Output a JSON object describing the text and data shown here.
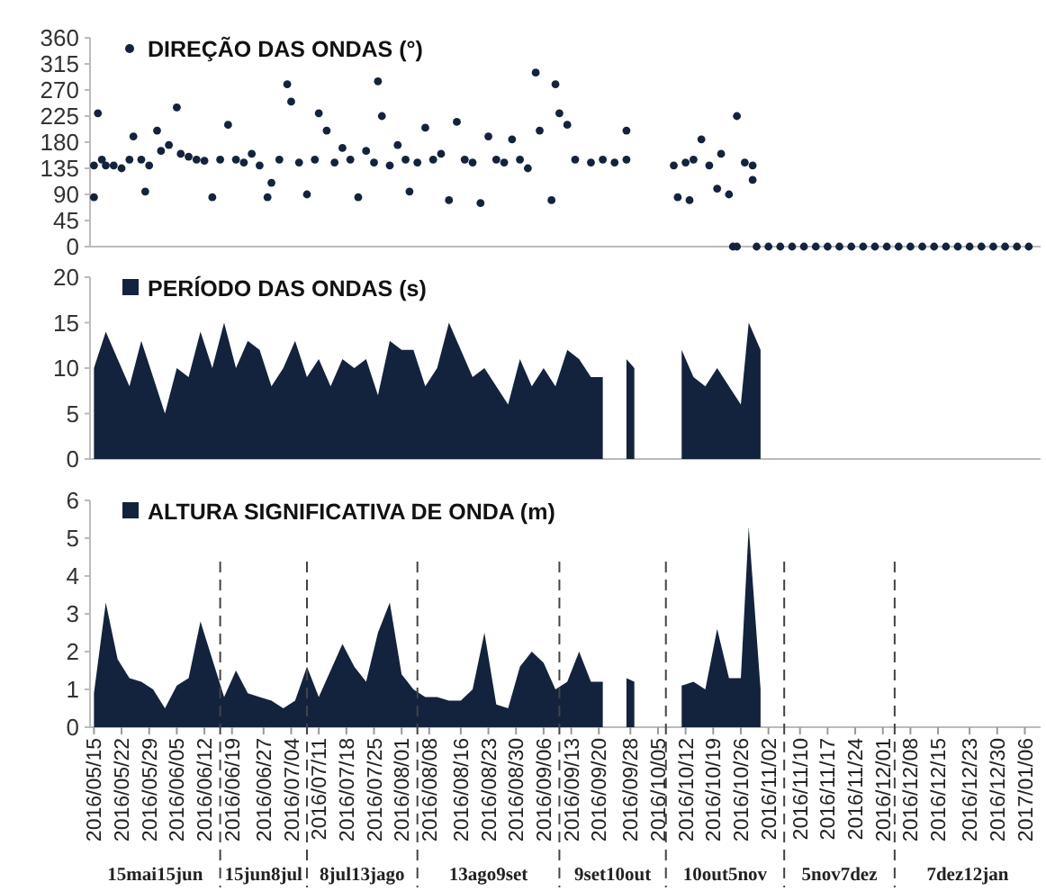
{
  "chart_data": [
    {
      "type": "scatter",
      "tick_labels": "y",
      "legend": "top left",
      "marker": "circle",
      "xlim": [
        "2016-05-14",
        "2017-01-10"
      ],
      "ylim": [
        0,
        360
      ],
      "yticks": [
        0,
        45,
        90,
        135,
        180,
        225,
        270,
        315,
        360
      ],
      "series": [
        {
          "name": "DIREÇÃO DAS ONDAS (°)",
          "color": "#13233d",
          "x": [
            "2016-05-15",
            "2016-05-15",
            "2016-05-16",
            "2016-05-17",
            "2016-05-18",
            "2016-05-20",
            "2016-05-22",
            "2016-05-24",
            "2016-05-25",
            "2016-05-27",
            "2016-05-28",
            "2016-05-29",
            "2016-05-31",
            "2016-06-01",
            "2016-06-03",
            "2016-06-05",
            "2016-06-06",
            "2016-06-08",
            "2016-06-10",
            "2016-06-12",
            "2016-06-14",
            "2016-06-16",
            "2016-06-18",
            "2016-06-20",
            "2016-06-22",
            "2016-06-24",
            "2016-06-26",
            "2016-06-28",
            "2016-06-29",
            "2016-07-01",
            "2016-07-03",
            "2016-07-04",
            "2016-07-06",
            "2016-07-08",
            "2016-07-10",
            "2016-07-11",
            "2016-07-13",
            "2016-07-15",
            "2016-07-17",
            "2016-07-19",
            "2016-07-21",
            "2016-07-23",
            "2016-07-25",
            "2016-07-26",
            "2016-07-27",
            "2016-07-29",
            "2016-07-31",
            "2016-08-02",
            "2016-08-03",
            "2016-08-05",
            "2016-08-07",
            "2016-08-09",
            "2016-08-11",
            "2016-08-13",
            "2016-08-15",
            "2016-08-17",
            "2016-08-19",
            "2016-08-21",
            "2016-08-23",
            "2016-08-25",
            "2016-08-27",
            "2016-08-29",
            "2016-08-31",
            "2016-09-02",
            "2016-09-04",
            "2016-09-05",
            "2016-09-08",
            "2016-09-09",
            "2016-09-10",
            "2016-09-12",
            "2016-09-14",
            "2016-09-18",
            "2016-09-21",
            "2016-09-24",
            "2016-09-27",
            "2016-09-27",
            "2016-10-09",
            "2016-10-10",
            "2016-10-12",
            "2016-10-13",
            "2016-10-14",
            "2016-10-16",
            "2016-10-18",
            "2016-10-20",
            "2016-10-21",
            "2016-10-23",
            "2016-10-25",
            "2016-10-27",
            "2016-10-29",
            "2016-10-29",
            "2016-10-24",
            "2016-10-25",
            "2016-10-30",
            "2016-11-02",
            "2016-11-05",
            "2016-11-08",
            "2016-11-11",
            "2016-11-14",
            "2016-11-17",
            "2016-11-20",
            "2016-11-23",
            "2016-11-26",
            "2016-11-29",
            "2016-12-02",
            "2016-12-05",
            "2016-12-08",
            "2016-12-11",
            "2016-12-14",
            "2016-12-17",
            "2016-12-20",
            "2016-12-23",
            "2016-12-26",
            "2016-12-29",
            "2017-01-01",
            "2017-01-04",
            "2017-01-07"
          ],
          "values": [
            85,
            140,
            230,
            150,
            140,
            140,
            135,
            150,
            190,
            150,
            95,
            140,
            200,
            165,
            175,
            240,
            160,
            155,
            150,
            148,
            85,
            150,
            210,
            150,
            145,
            160,
            140,
            85,
            110,
            150,
            280,
            250,
            145,
            90,
            150,
            230,
            200,
            145,
            170,
            150,
            85,
            165,
            145,
            285,
            225,
            140,
            175,
            150,
            95,
            145,
            205,
            150,
            160,
            80,
            215,
            150,
            145,
            75,
            190,
            150,
            145,
            185,
            150,
            135,
            300,
            200,
            80,
            280,
            230,
            210,
            150,
            145,
            150,
            145,
            150,
            200,
            140,
            85,
            145,
            80,
            150,
            185,
            140,
            100,
            160,
            90,
            225,
            145,
            140,
            115,
            0,
            0,
            0,
            0,
            0,
            0,
            0,
            0,
            0,
            0,
            0,
            0,
            0,
            0,
            0,
            0,
            0,
            0,
            0,
            0,
            0,
            0,
            0,
            0,
            0,
            0
          ]
        }
      ]
    },
    {
      "type": "area",
      "tick_labels": "y",
      "legend": "top left",
      "xlim": [
        "2016-05-14",
        "2017-01-10"
      ],
      "ylim": [
        0,
        20
      ],
      "yticks": [
        0,
        5,
        10,
        15,
        20
      ],
      "x": [
        "2016-05-15",
        "2016-05-18",
        "2016-05-21",
        "2016-05-24",
        "2016-05-27",
        "2016-05-30",
        "2016-06-02",
        "2016-06-05",
        "2016-06-08",
        "2016-06-11",
        "2016-06-14",
        "2016-06-17",
        "2016-06-20",
        "2016-06-23",
        "2016-06-26",
        "2016-06-29",
        "2016-07-02",
        "2016-07-05",
        "2016-07-08",
        "2016-07-11",
        "2016-07-14",
        "2016-07-17",
        "2016-07-20",
        "2016-07-23",
        "2016-07-26",
        "2016-07-29",
        "2016-08-01",
        "2016-08-04",
        "2016-08-07",
        "2016-08-10",
        "2016-08-13",
        "2016-08-16",
        "2016-08-19",
        "2016-08-22",
        "2016-08-25",
        "2016-08-28",
        "2016-08-31",
        "2016-09-03",
        "2016-09-06",
        "2016-09-09",
        "2016-09-12",
        "2016-09-15",
        "2016-09-18",
        "2016-09-21",
        "2016-09-24",
        "2016-09-27",
        "2016-09-29",
        "2016-10-02",
        "2016-10-08",
        "2016-10-11",
        "2016-10-14",
        "2016-10-17",
        "2016-10-20",
        "2016-10-23",
        "2016-10-26",
        "2016-10-28",
        "2016-10-31"
      ],
      "series": [
        {
          "name": "PERÍODO DAS ONDAS (s)",
          "color": "#13233d",
          "values": [
            10,
            14,
            11,
            8,
            13,
            9,
            5,
            10,
            9,
            14,
            10,
            15,
            10,
            13,
            12,
            8,
            10,
            13,
            9,
            11,
            8,
            11,
            10,
            11,
            7,
            13,
            12,
            12,
            8,
            10,
            15,
            12,
            9,
            10,
            8,
            6,
            11,
            8,
            10,
            8,
            12,
            11,
            9,
            9,
            null,
            11,
            10,
            null,
            null,
            12,
            9,
            8,
            10,
            8,
            6,
            15,
            12
          ]
        }
      ]
    },
    {
      "type": "area",
      "legend": "top left",
      "xlim": [
        "2016-05-14",
        "2017-01-10"
      ],
      "ylim": [
        0,
        6
      ],
      "yticks": [
        0,
        1,
        2,
        3,
        4,
        5,
        6
      ],
      "xticks": [
        {
          "value": "2016-05-15",
          "label": "2016/05/15"
        },
        {
          "value": "2016-05-22",
          "label": "2016/05/22"
        },
        {
          "value": "2016-05-29",
          "label": "2016/05/29"
        },
        {
          "value": "2016-06-05",
          "label": "2016/06/05"
        },
        {
          "value": "2016-06-12",
          "label": "2016/06/12"
        },
        {
          "value": "2016-06-19",
          "label": "2016/06/19"
        },
        {
          "value": "2016-06-27",
          "label": "2016/06/27"
        },
        {
          "value": "2016-07-04",
          "label": "2016/07/04"
        },
        {
          "value": "2016-07-11",
          "label": "2016/07/11"
        },
        {
          "value": "2016-07-18",
          "label": "2016/07/18"
        },
        {
          "value": "2016-07-25",
          "label": "2016/07/25"
        },
        {
          "value": "2016-08-01",
          "label": "2016/08/01"
        },
        {
          "value": "2016-08-08",
          "label": "2016/08/08"
        },
        {
          "value": "2016-08-16",
          "label": "2016/08/16"
        },
        {
          "value": "2016-08-23",
          "label": "2016/08/23"
        },
        {
          "value": "2016-08-30",
          "label": "2016/08/30"
        },
        {
          "value": "2016-09-06",
          "label": "2016/09/06"
        },
        {
          "value": "2016-09-13",
          "label": "2016/09/13"
        },
        {
          "value": "2016-09-20",
          "label": "2016/09/20"
        },
        {
          "value": "2016-09-28",
          "label": "2016/09/28"
        },
        {
          "value": "2016-10-05",
          "label": "2016/10/05"
        },
        {
          "value": "2016-10-12",
          "label": "2016/10/12"
        },
        {
          "value": "2016-10-19",
          "label": "2016/10/19"
        },
        {
          "value": "2016-10-26",
          "label": "2016/10/26"
        },
        {
          "value": "2016-11-02",
          "label": "2016/11/02"
        },
        {
          "value": "2016-11-10",
          "label": "2016/11/10"
        },
        {
          "value": "2016-11-17",
          "label": "2016/11/17"
        },
        {
          "value": "2016-11-24",
          "label": "2016/11/24"
        },
        {
          "value": "2016-12-01",
          "label": "2016/12/01"
        },
        {
          "value": "2016-12-08",
          "label": "2016/12/08"
        },
        {
          "value": "2016-12-15",
          "label": "2016/12/15"
        },
        {
          "value": "2016-12-23",
          "label": "2016/12/23"
        },
        {
          "value": "2016-12-30",
          "label": "2016/12/30"
        },
        {
          "value": "2017-01-06",
          "label": "2017/01/06"
        }
      ],
      "x": [
        "2016-05-15",
        "2016-05-18",
        "2016-05-21",
        "2016-05-24",
        "2016-05-27",
        "2016-05-30",
        "2016-06-02",
        "2016-06-05",
        "2016-06-08",
        "2016-06-11",
        "2016-06-14",
        "2016-06-17",
        "2016-06-20",
        "2016-06-23",
        "2016-06-26",
        "2016-06-29",
        "2016-07-02",
        "2016-07-05",
        "2016-07-08",
        "2016-07-11",
        "2016-07-14",
        "2016-07-17",
        "2016-07-20",
        "2016-07-23",
        "2016-07-26",
        "2016-07-29",
        "2016-08-01",
        "2016-08-04",
        "2016-08-07",
        "2016-08-10",
        "2016-08-13",
        "2016-08-16",
        "2016-08-19",
        "2016-08-22",
        "2016-08-25",
        "2016-08-28",
        "2016-08-31",
        "2016-09-03",
        "2016-09-06",
        "2016-09-09",
        "2016-09-12",
        "2016-09-15",
        "2016-09-18",
        "2016-09-21",
        "2016-09-24",
        "2016-09-27",
        "2016-09-29",
        "2016-10-02",
        "2016-10-08",
        "2016-10-11",
        "2016-10-14",
        "2016-10-17",
        "2016-10-20",
        "2016-10-23",
        "2016-10-26",
        "2016-10-28",
        "2016-10-31"
      ],
      "series": [
        {
          "name": "ALTURA SIGNIFICATIVA DE ONDA (m)",
          "color": "#13233d",
          "values": [
            0.9,
            3.3,
            1.8,
            1.3,
            1.2,
            1.0,
            0.5,
            1.1,
            1.3,
            2.8,
            1.8,
            0.8,
            1.5,
            0.9,
            0.8,
            0.7,
            0.5,
            0.7,
            1.6,
            0.8,
            1.5,
            2.2,
            1.6,
            1.2,
            2.5,
            3.3,
            1.4,
            1.0,
            0.8,
            0.8,
            0.7,
            0.7,
            1.0,
            2.5,
            0.6,
            0.5,
            1.6,
            2.0,
            1.7,
            1.0,
            1.2,
            2.0,
            1.2,
            1.2,
            null,
            1.3,
            1.2,
            null,
            null,
            1.1,
            1.2,
            1.0,
            2.6,
            1.3,
            1.3,
            5.3,
            1.0
          ]
        }
      ],
      "ref_lines": [
        {
          "axis": "x",
          "value": "2016-06-16",
          "line_style": "dashed"
        },
        {
          "axis": "x",
          "value": "2016-07-08",
          "line_style": "dashed"
        },
        {
          "axis": "x",
          "value": "2016-08-05",
          "line_style": "dashed"
        },
        {
          "axis": "x",
          "value": "2016-09-10",
          "line_style": "dashed"
        },
        {
          "axis": "x",
          "value": "2016-10-07",
          "line_style": "dashed"
        },
        {
          "axis": "x",
          "value": "2016-11-06",
          "line_style": "dashed"
        },
        {
          "axis": "x",
          "value": "2016-12-04",
          "line_style": "dashed"
        }
      ],
      "annotations": [
        "15mai15jun",
        "15jun8jul",
        "8jul13jago",
        "13ago9set",
        "9set10out",
        "10out5nov",
        "5nov7dez",
        "7dez12jan"
      ]
    }
  ]
}
